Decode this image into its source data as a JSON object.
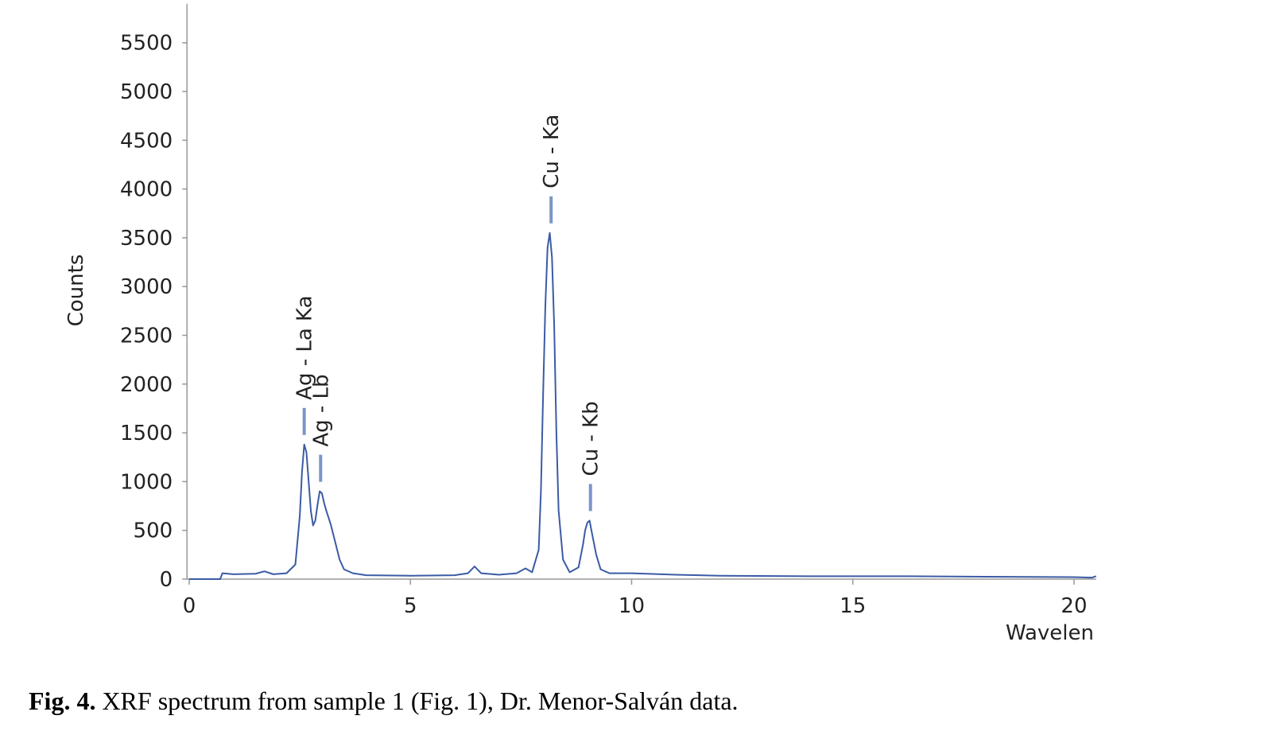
{
  "chart_data": {
    "type": "line",
    "xlabel": "Wavelen",
    "ylabel": "Counts",
    "xlim": [
      -0.05,
      20.5
    ],
    "ylim": [
      0,
      5900
    ],
    "xticks": [
      0,
      5,
      10,
      15,
      20
    ],
    "yticks": [
      0,
      500,
      1000,
      1500,
      2000,
      2500,
      3000,
      3500,
      4000,
      4500,
      5000,
      5500
    ],
    "series": [
      {
        "color": "#3b5ba5",
        "x": [
          0,
          0.7,
          0.75,
          1.0,
          1.5,
          1.7,
          1.9,
          2.2,
          2.4,
          2.5,
          2.55,
          2.6,
          2.65,
          2.7,
          2.75,
          2.8,
          2.85,
          2.9,
          2.95,
          3.0,
          3.05,
          3.1,
          3.2,
          3.3,
          3.4,
          3.5,
          3.7,
          4.0,
          5.0,
          6.0,
          6.3,
          6.45,
          6.6,
          7.0,
          7.4,
          7.6,
          7.75,
          7.9,
          7.95,
          8.0,
          8.05,
          8.1,
          8.15,
          8.2,
          8.25,
          8.3,
          8.35,
          8.45,
          8.6,
          8.8,
          8.9,
          8.95,
          9.0,
          9.05,
          9.1,
          9.2,
          9.3,
          9.5,
          10.0,
          11.0,
          12.0,
          14.0,
          16.0,
          18.0,
          20.0,
          20.4,
          20.5
        ],
        "values": [
          0,
          0,
          60,
          50,
          55,
          80,
          50,
          60,
          150,
          650,
          1100,
          1380,
          1300,
          1000,
          700,
          550,
          600,
          760,
          900,
          880,
          780,
          700,
          560,
          380,
          200,
          100,
          60,
          40,
          35,
          40,
          60,
          130,
          60,
          45,
          60,
          110,
          70,
          300,
          900,
          1900,
          2800,
          3400,
          3550,
          3300,
          2600,
          1500,
          700,
          200,
          70,
          120,
          350,
          500,
          580,
          600,
          480,
          250,
          100,
          60,
          60,
          45,
          35,
          30,
          30,
          25,
          20,
          15,
          30
        ]
      }
    ],
    "annotations": [
      {
        "text": "Ag - La Ka",
        "x": 2.6
      },
      {
        "text": "Ag - Lb",
        "x": 2.97
      },
      {
        "text": "Cu - Ka",
        "x": 8.18
      },
      {
        "text": "Cu - Kb",
        "x": 9.07
      }
    ]
  },
  "caption": {
    "label": "Fig. 4.",
    "text": "XRF spectrum from sample 1 (Fig. 1), Dr. Menor-Salván data."
  }
}
